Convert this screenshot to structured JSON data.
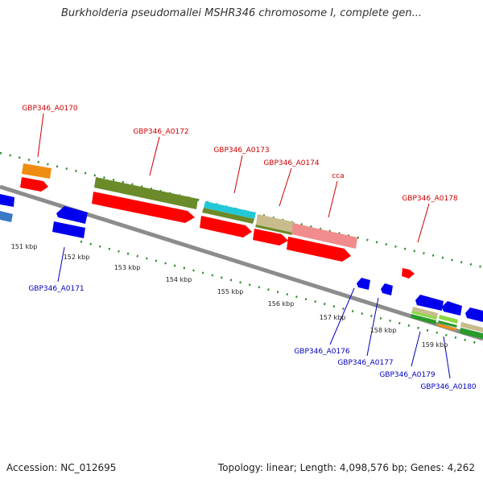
{
  "title": "Burkholderia pseudomallei MSHR346 chromosome I, complete gen...",
  "footer": {
    "accession": "Accession: NC_012695",
    "summary": "Topology: linear; Length: 4,098,576 bp; Genes: 4,262"
  },
  "colors": {
    "top_label": "#cc0000",
    "bottom_label": "#0000bb",
    "backbone": "#8c8c8c",
    "dots": "#2a8a2a"
  },
  "ticks": [
    "151 kbp",
    "152 kbp",
    "153 kbp",
    "154 kbp",
    "155 kbp",
    "156 kbp",
    "157 kbp",
    "158 kbp",
    "159 kbp"
  ],
  "top_labels": [
    "GBP346_A0170",
    "GBP346_A0172",
    "GBP346_A0173",
    "GBP346_A0174",
    "cca",
    "GBP346_A0178"
  ],
  "bottom_labels": [
    "GBP346_A0171",
    "GBP346_A0176",
    "GBP346_A0177",
    "GBP346_A0179",
    "GBP346_A0180"
  ]
}
